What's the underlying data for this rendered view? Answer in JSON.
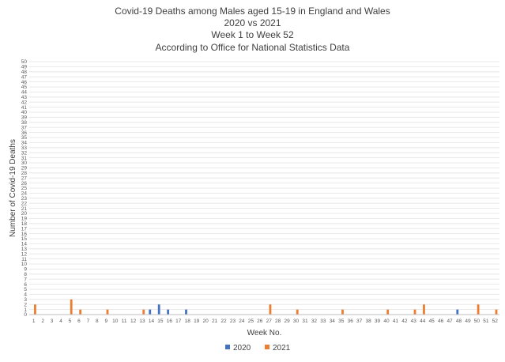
{
  "chart_data": {
    "type": "bar",
    "title_lines": [
      "Covid-19 Deaths among Males aged 15-19 in England and Wales",
      "2020 vs 2021",
      "Week 1 to Week 52",
      "According to Office for National Statistics Data"
    ],
    "xlabel": "Week No.",
    "ylabel": "Number of Covid-19 Deaths",
    "ylim": [
      0,
      50
    ],
    "y_step": 1,
    "grid": true,
    "legend_position": "bottom",
    "categories": [
      "1",
      "2",
      "3",
      "4",
      "5",
      "6",
      "7",
      "8",
      "9",
      "10",
      "11",
      "12",
      "13",
      "14",
      "15",
      "16",
      "17",
      "18",
      "19",
      "20",
      "21",
      "22",
      "23",
      "24",
      "25",
      "26",
      "27",
      "28",
      "29",
      "30",
      "31",
      "32",
      "33",
      "34",
      "35",
      "36",
      "37",
      "38",
      "39",
      "40",
      "41",
      "42",
      "43",
      "44",
      "45",
      "46",
      "47",
      "48",
      "49",
      "50",
      "51",
      "52"
    ],
    "series": [
      {
        "name": "2020",
        "color": "#4472c4",
        "values": [
          0,
          0,
          0,
          0,
          0,
          0,
          0,
          0,
          0,
          0,
          0,
          0,
          0,
          1,
          2,
          1,
          0,
          1,
          0,
          0,
          0,
          0,
          0,
          0,
          0,
          0,
          0,
          0,
          0,
          0,
          0,
          0,
          0,
          0,
          0,
          0,
          0,
          0,
          0,
          0,
          0,
          0,
          0,
          0,
          0,
          0,
          0,
          1,
          0,
          0,
          0,
          0
        ]
      },
      {
        "name": "2021",
        "color": "#ed7d31",
        "values": [
          2,
          0,
          0,
          0,
          3,
          1,
          0,
          0,
          1,
          0,
          0,
          0,
          1,
          0,
          0,
          0,
          0,
          0,
          0,
          0,
          0,
          0,
          0,
          0,
          0,
          0,
          2,
          0,
          0,
          1,
          0,
          0,
          0,
          0,
          1,
          0,
          0,
          0,
          0,
          1,
          0,
          0,
          1,
          2,
          0,
          0,
          0,
          0,
          0,
          2,
          0,
          1
        ]
      }
    ]
  }
}
